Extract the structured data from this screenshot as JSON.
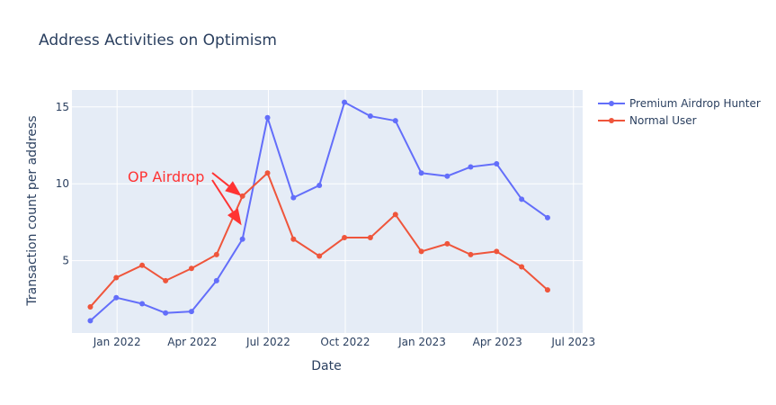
{
  "chart_data": {
    "type": "line",
    "title": "Address Activities on Optimism",
    "xlabel": "Date",
    "ylabel": "Transaction count per address",
    "x_range": [
      "2021-11-08",
      "2023-07-12"
    ],
    "ylim": [
      0.3,
      16.1
    ],
    "x_ticks": [
      {
        "date": "2022-01-01",
        "label": "Jan 2022"
      },
      {
        "date": "2022-04-01",
        "label": "Apr 2022"
      },
      {
        "date": "2022-07-01",
        "label": "Jul 2022"
      },
      {
        "date": "2022-10-01",
        "label": "Oct 2022"
      },
      {
        "date": "2023-01-01",
        "label": "Jan 2023"
      },
      {
        "date": "2023-04-01",
        "label": "Apr 2023"
      },
      {
        "date": "2023-07-01",
        "label": "Jul 2023"
      }
    ],
    "y_ticks": [
      5,
      10,
      15
    ],
    "x": [
      "2021-11-30",
      "2021-12-31",
      "2022-01-31",
      "2022-02-28",
      "2022-03-31",
      "2022-04-30",
      "2022-05-31",
      "2022-06-30",
      "2022-07-31",
      "2022-08-31",
      "2022-09-30",
      "2022-10-31",
      "2022-11-30",
      "2022-12-31",
      "2023-01-31",
      "2023-02-28",
      "2023-03-31",
      "2023-04-30",
      "2023-05-31"
    ],
    "series": [
      {
        "name": "Premium Airdrop Hunter",
        "color": "#636efa",
        "values": [
          1.1,
          2.6,
          2.2,
          1.6,
          1.7,
          3.7,
          6.4,
          14.3,
          9.1,
          9.9,
          15.3,
          14.4,
          14.1,
          10.7,
          10.5,
          11.1,
          11.3,
          9.0,
          7.8
        ]
      },
      {
        "name": "Normal User",
        "color": "#ef553b",
        "values": [
          2.0,
          3.9,
          4.7,
          3.7,
          4.5,
          5.4,
          9.2,
          10.7,
          6.4,
          5.3,
          6.5,
          6.5,
          8.0,
          5.6,
          6.1,
          5.4,
          5.6,
          4.6,
          3.1
        ]
      }
    ],
    "annotations": [
      {
        "text": "OP Airdrop",
        "color": "#ff3333",
        "arrows": [
          {
            "target_x": "2022-05-31",
            "target_y": 9.2
          },
          {
            "target_x": "2022-05-31",
            "target_y": 7.3
          }
        ]
      }
    ],
    "grid": true,
    "legend": "top-right",
    "background": "#e5ecf6",
    "grid_color": "#ffffff",
    "text_color": "#2a3f5f"
  }
}
